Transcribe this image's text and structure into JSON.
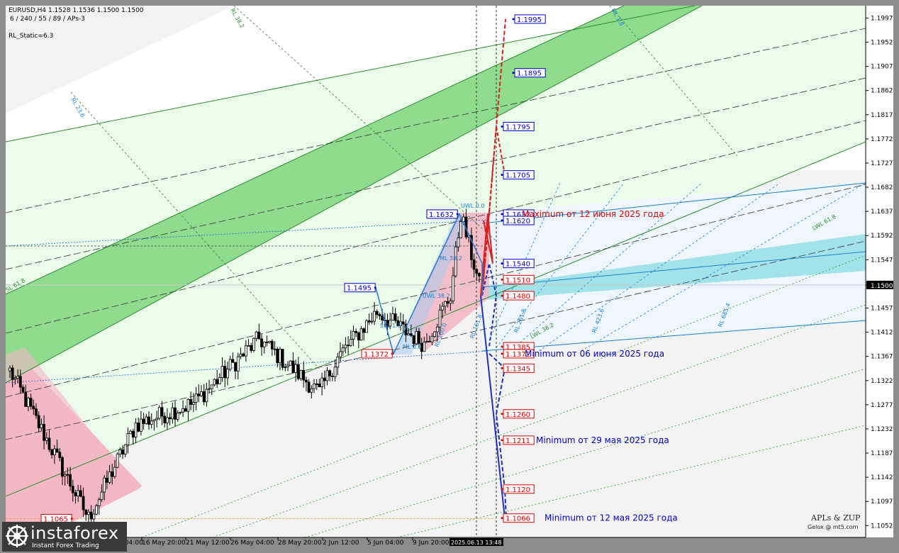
{
  "header": {
    "symbol_line": "EURUSD,H4  1.1528 1.1536 1.1500 1.1500",
    "params_line": "6 / 240 / 55 / 89 / APs-3",
    "static_line": "RL_Static=6.3"
  },
  "branding": {
    "logo_text": "instaforex",
    "logo_tagline": "Instant Forex Trading",
    "author_line": "APLs & ZUP",
    "author_email": "Gelox @ mt5.com"
  },
  "colors": {
    "background": "#ffffff",
    "green_channel": "#8fdc8f",
    "light_green": "#eafbea",
    "pink": "#f4b8c4",
    "blue_zone": "#8fdfe3",
    "price_line": "#c8c8c8",
    "red_label": "#e00000",
    "blue_label": "#0000d0"
  },
  "chart_data": {
    "type": "candlestick",
    "ylim": [
      1.103,
      1.202
    ],
    "current_price": 1.15,
    "current_price_label": "1.1500",
    "y_ticks": [
      "1.1997",
      "1.1952",
      "1.1907",
      "1.1862",
      "1.1817",
      "1.1772",
      "1.1727",
      "1.1682",
      "1.1637",
      "1.1592",
      "1.1547",
      "1.1500",
      "1.1457",
      "1.1412",
      "1.1367",
      "1.1322",
      "1.1277",
      "1.1232",
      "1.1187",
      "1.1142",
      "1.1097",
      "1.1052"
    ],
    "x_ticks": [
      "14 May 04:00",
      "16 May 20:00",
      "21 May 12:00",
      "26 May 04:00",
      "28 May 20:00",
      "2 Jun 12:00",
      "5 Jun 04:00",
      "9 Jun 20:00",
      "2025.06.13 13:48"
    ],
    "candle_range": {
      "start": 1.134,
      "low": 1.1065,
      "high": 1.1632,
      "count": 180
    },
    "blue_levels": [
      {
        "value": 1.1995,
        "label": "1.1995"
      },
      {
        "value": 1.1895,
        "label": "1.1895"
      },
      {
        "value": 1.1795,
        "label": "1.1795"
      },
      {
        "value": 1.1705,
        "label": "1.1705"
      },
      {
        "value": 1.1632,
        "label": "1.1632"
      },
      {
        "value": 1.162,
        "label": "1.1620"
      },
      {
        "value": 1.154,
        "label": "1.1540"
      },
      {
        "value": 1.1632,
        "label": "1.1632",
        "side": "left"
      },
      {
        "value": 1.1495,
        "label": "1.1495",
        "side": "left"
      }
    ],
    "red_levels": [
      {
        "value": 1.151,
        "label": "1.1510"
      },
      {
        "value": 1.148,
        "label": "1.1480"
      },
      {
        "value": 1.1385,
        "label": "1.1385"
      },
      {
        "value": 1.1372,
        "label": "1.1372"
      },
      {
        "value": 1.1345,
        "label": "1.1345"
      },
      {
        "value": 1.126,
        "label": "1.1260"
      },
      {
        "value": 1.1211,
        "label": "1.1211"
      },
      {
        "value": 1.112,
        "label": "1.1120"
      },
      {
        "value": 1.1066,
        "label": "1.1066"
      },
      {
        "value": 1.1372,
        "label": "1.1372",
        "side": "left"
      },
      {
        "value": 1.1065,
        "label": "1.1065",
        "side": "left"
      }
    ],
    "annotations": [
      {
        "text": "Maximum от 12 июня 2025 года",
        "value": 1.1632,
        "color": "red"
      },
      {
        "text": "Minimum от 06 июня 2025 года",
        "value": 1.1372,
        "color": "blue"
      },
      {
        "text": "Minimum от 29 мая 2025 года",
        "value": 1.1211,
        "color": "blue"
      },
      {
        "text": "Minimum от 12 мая 2025 года",
        "value": 1.1066,
        "color": "blue"
      }
    ],
    "line_labels": [
      "UWL 0.0",
      "RL 38.2",
      "RL 23.6",
      "SL 61.8",
      "LWL 61.8",
      "LWL 38.2",
      "RL 100.0",
      "RL 161.8",
      "RL 261.8",
      "RL 423.6",
      "RL 685.4",
      "ML 1.8",
      "ML 38.2",
      "SSL 1.8",
      "UWL 38.2",
      "ML 0.0"
    ]
  }
}
